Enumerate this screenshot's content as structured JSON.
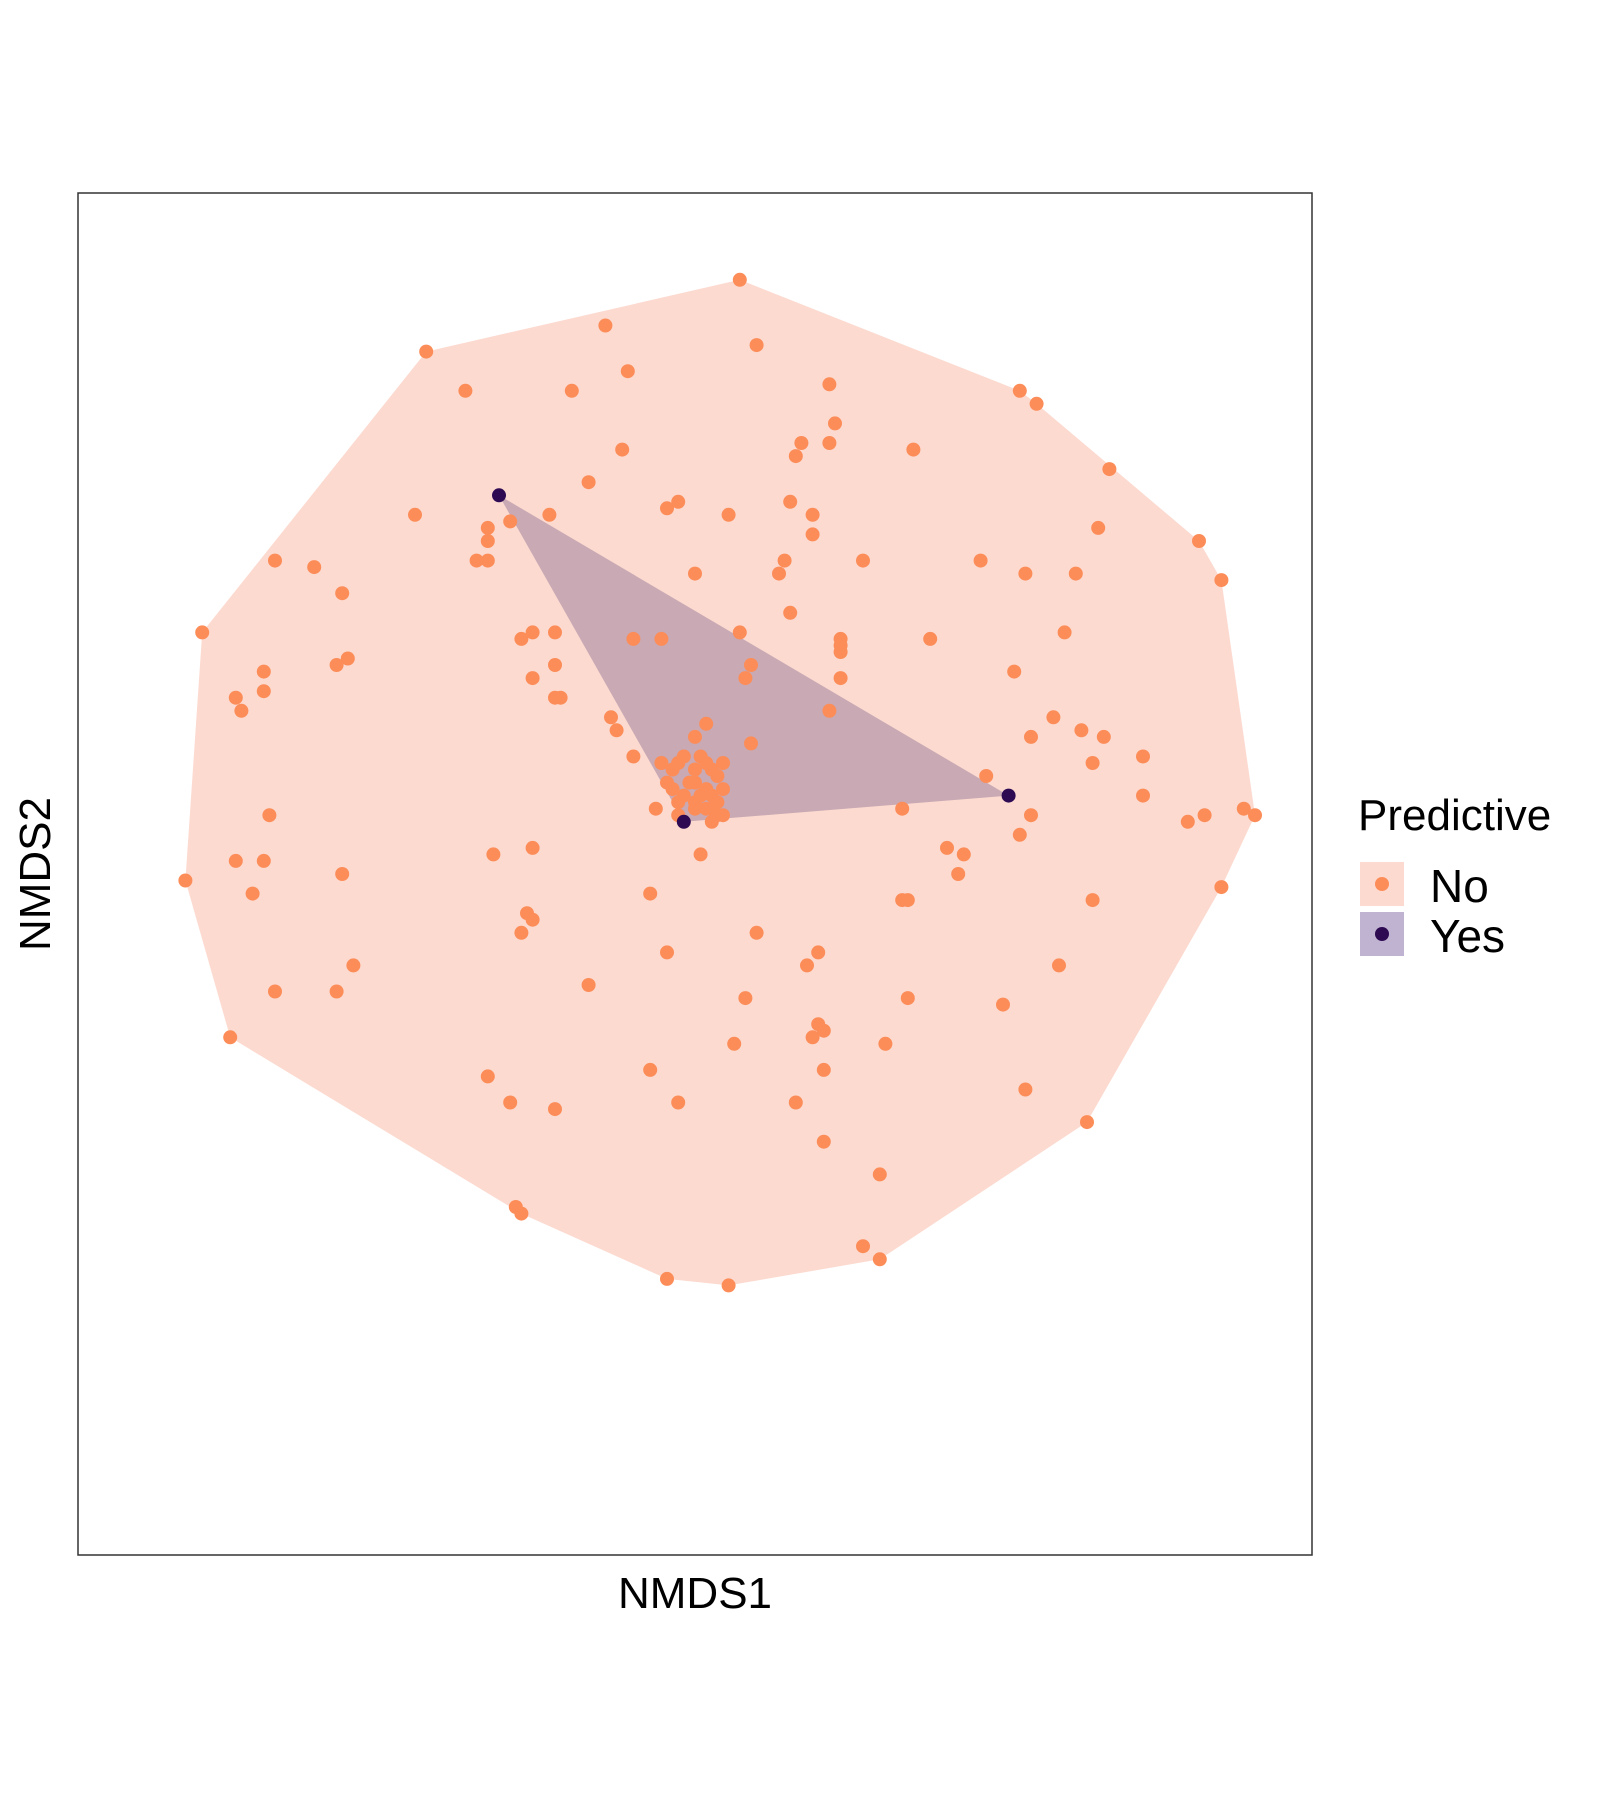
{
  "chart_data": {
    "type": "scatter",
    "title": "",
    "xlabel": "NMDS1",
    "ylabel": "NMDS2",
    "xlim": [
      -1,
      1
    ],
    "ylim": [
      -1,
      1
    ],
    "grid": false,
    "ticks_shown": false,
    "hulls": true,
    "legend": {
      "title": "Predictive",
      "placement": "right",
      "entries": [
        "No",
        "Yes"
      ]
    },
    "colors": {
      "No": "#fc8d59",
      "No_fill": "#fcdad0",
      "Yes": "#2d0a52",
      "Yes_fill": "#bfa0ae"
    },
    "series": [
      {
        "name": "No",
        "points": [
          [
            0.08,
            0.91
          ],
          [
            -0.48,
            0.8
          ],
          [
            -0.16,
            0.84
          ],
          [
            -0.12,
            0.77
          ],
          [
            0.11,
            0.81
          ],
          [
            -0.22,
            0.74
          ],
          [
            -0.41,
            0.74
          ],
          [
            0.24,
            0.75
          ],
          [
            0.25,
            0.69
          ],
          [
            0.58,
            0.74
          ],
          [
            0.61,
            0.72
          ],
          [
            0.19,
            0.66
          ],
          [
            0.24,
            0.66
          ],
          [
            -0.13,
            0.65
          ],
          [
            0.39,
            0.65
          ],
          [
            0.18,
            0.64
          ],
          [
            -0.19,
            0.6
          ],
          [
            0.74,
            0.62
          ],
          [
            0.17,
            0.57
          ],
          [
            -0.03,
            0.57
          ],
          [
            0.06,
            0.55
          ],
          [
            -0.5,
            0.55
          ],
          [
            -0.05,
            0.56
          ],
          [
            0.21,
            0.55
          ],
          [
            -0.26,
            0.55
          ],
          [
            0.21,
            0.52
          ],
          [
            -0.37,
            0.53
          ],
          [
            -0.33,
            0.54
          ],
          [
            -0.37,
            0.51
          ],
          [
            0.72,
            0.53
          ],
          [
            0.9,
            0.51
          ],
          [
            0.15,
            0.46
          ],
          [
            0.16,
            0.48
          ],
          [
            0.3,
            0.48
          ],
          [
            -0.75,
            0.48
          ],
          [
            -0.68,
            0.47
          ],
          [
            -0.37,
            0.48
          ],
          [
            -0.39,
            0.48
          ],
          [
            0.51,
            0.48
          ],
          [
            0.59,
            0.46
          ],
          [
            0.68,
            0.46
          ],
          [
            0.94,
            0.45
          ],
          [
            0.0,
            0.46
          ],
          [
            0.17,
            0.4
          ],
          [
            -0.63,
            0.43
          ],
          [
            -0.88,
            0.37
          ],
          [
            0.66,
            0.37
          ],
          [
            -0.29,
            0.37
          ],
          [
            -0.25,
            0.37
          ],
          [
            0.08,
            0.37
          ],
          [
            -0.31,
            0.36
          ],
          [
            -0.11,
            0.36
          ],
          [
            -0.06,
            0.36
          ],
          [
            0.26,
            0.35
          ],
          [
            0.26,
            0.36
          ],
          [
            0.42,
            0.36
          ],
          [
            0.26,
            0.34
          ],
          [
            -0.62,
            0.33
          ],
          [
            -0.64,
            0.32
          ],
          [
            -0.25,
            0.32
          ],
          [
            0.1,
            0.32
          ],
          [
            -0.77,
            0.31
          ],
          [
            -0.29,
            0.3
          ],
          [
            0.57,
            0.31
          ],
          [
            0.09,
            0.3
          ],
          [
            0.26,
            0.3
          ],
          [
            -0.77,
            0.28
          ],
          [
            -0.25,
            0.27
          ],
          [
            -0.24,
            0.27
          ],
          [
            -0.82,
            0.27
          ],
          [
            -0.81,
            0.25
          ],
          [
            0.24,
            0.25
          ],
          [
            -0.15,
            0.24
          ],
          [
            0.02,
            0.23
          ],
          [
            -0.14,
            0.22
          ],
          [
            0.64,
            0.24
          ],
          [
            0.69,
            0.22
          ],
          [
            0.0,
            0.21
          ],
          [
            0.1,
            0.2
          ],
          [
            0.6,
            0.21
          ],
          [
            0.73,
            0.21
          ],
          [
            0.8,
            0.18
          ],
          [
            -0.11,
            0.18
          ],
          [
            -0.03,
            0.17
          ],
          [
            0.05,
            0.17
          ],
          [
            0.71,
            0.17
          ],
          [
            0.0,
            0.16
          ],
          [
            0.02,
            0.17
          ],
          [
            0.03,
            0.16
          ],
          [
            -0.04,
            0.16
          ],
          [
            -0.06,
            0.17
          ],
          [
            -0.02,
            0.18
          ],
          [
            0.01,
            0.18
          ],
          [
            0.0,
            0.14
          ],
          [
            0.02,
            0.13
          ],
          [
            -0.05,
            0.14
          ],
          [
            -0.01,
            0.14
          ],
          [
            0.04,
            0.15
          ],
          [
            -0.04,
            0.13
          ],
          [
            -0.02,
            0.12
          ],
          [
            0.01,
            0.12
          ],
          [
            0.03,
            0.12
          ],
          [
            0.05,
            0.13
          ],
          [
            0.0,
            0.11
          ],
          [
            0.04,
            0.11
          ],
          [
            -0.03,
            0.11
          ],
          [
            0.02,
            0.1
          ],
          [
            -0.07,
            0.1
          ],
          [
            0.03,
            0.1
          ],
          [
            0.0,
            0.1
          ],
          [
            0.52,
            0.15
          ],
          [
            0.8,
            0.12
          ],
          [
            0.37,
            0.1
          ],
          [
            0.91,
            0.09
          ],
          [
            0.98,
            0.1
          ],
          [
            1.0,
            0.09
          ],
          [
            0.6,
            0.09
          ],
          [
            -0.76,
            0.09
          ],
          [
            -0.03,
            0.09
          ],
          [
            0.03,
            0.08
          ],
          [
            0.88,
            0.08
          ],
          [
            0.05,
            0.09
          ],
          [
            0.04,
            0.09
          ],
          [
            -0.29,
            0.04
          ],
          [
            -0.36,
            0.03
          ],
          [
            0.58,
            0.06
          ],
          [
            0.45,
            0.04
          ],
          [
            0.48,
            0.03
          ],
          [
            0.01,
            0.03
          ],
          [
            -0.77,
            0.02
          ],
          [
            -0.82,
            0.02
          ],
          [
            -0.63,
            0.0
          ],
          [
            0.47,
            0.0
          ],
          [
            -0.91,
            -0.01
          ],
          [
            -0.08,
            -0.03
          ],
          [
            0.38,
            -0.04
          ],
          [
            0.37,
            -0.04
          ],
          [
            0.71,
            -0.04
          ],
          [
            0.94,
            -0.02
          ],
          [
            -0.3,
            -0.06
          ],
          [
            -0.29,
            -0.07
          ],
          [
            -0.79,
            -0.03
          ],
          [
            0.11,
            -0.09
          ],
          [
            -0.31,
            -0.09
          ],
          [
            -0.05,
            -0.12
          ],
          [
            0.22,
            -0.12
          ],
          [
            -0.61,
            -0.14
          ],
          [
            0.2,
            -0.14
          ],
          [
            0.65,
            -0.14
          ],
          [
            -0.19,
            -0.17
          ],
          [
            -0.75,
            -0.18
          ],
          [
            -0.64,
            -0.18
          ],
          [
            0.09,
            -0.19
          ],
          [
            0.38,
            -0.19
          ],
          [
            0.55,
            -0.2
          ],
          [
            0.22,
            -0.23
          ],
          [
            0.23,
            -0.24
          ],
          [
            0.21,
            -0.25
          ],
          [
            0.34,
            -0.26
          ],
          [
            -0.83,
            -0.25
          ],
          [
            0.07,
            -0.26
          ],
          [
            -0.37,
            -0.31
          ],
          [
            -0.08,
            -0.3
          ],
          [
            0.23,
            -0.3
          ],
          [
            -0.33,
            -0.35
          ],
          [
            -0.25,
            -0.36
          ],
          [
            -0.03,
            -0.35
          ],
          [
            0.18,
            -0.35
          ],
          [
            0.59,
            -0.33
          ],
          [
            0.7,
            -0.38
          ],
          [
            0.23,
            -0.41
          ],
          [
            0.33,
            -0.46
          ],
          [
            -0.32,
            -0.51
          ],
          [
            -0.31,
            -0.52
          ],
          [
            0.3,
            -0.57
          ],
          [
            0.33,
            -0.59
          ],
          [
            -0.05,
            -0.62
          ],
          [
            0.06,
            -0.63
          ]
        ]
      },
      {
        "name": "Yes",
        "points": [
          [
            -0.35,
            0.58
          ],
          [
            0.56,
            0.12
          ],
          [
            -0.02,
            0.08
          ]
        ]
      }
    ]
  }
}
